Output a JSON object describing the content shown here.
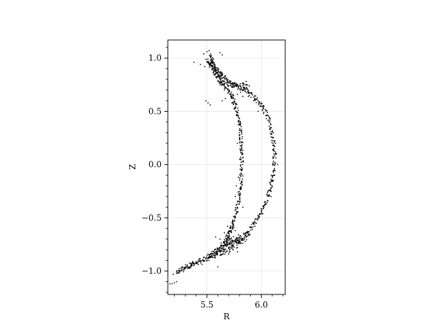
{
  "chart_data": {
    "type": "scatter",
    "title": "",
    "xlabel": "R",
    "ylabel": "Z",
    "xlim": [
      5.14,
      6.22
    ],
    "ylim": [
      -1.22,
      1.17
    ],
    "x_ticks": [
      5.5,
      6.0
    ],
    "x_tick_labels": [
      "5.5",
      "6.0"
    ],
    "y_ticks": [
      -1.0,
      -0.5,
      0.0,
      0.5,
      1.0
    ],
    "y_tick_labels": [
      "−1.0",
      "−0.5",
      "0.0",
      "0.5",
      "1.0"
    ],
    "grid": true,
    "marker_color": "#000000",
    "curves": {
      "outer_boundary": [
        [
          5.53,
          1.02
        ],
        [
          5.56,
          0.94
        ],
        [
          5.62,
          0.86
        ],
        [
          5.68,
          0.79
        ],
        [
          5.76,
          0.74
        ],
        [
          5.86,
          0.69
        ],
        [
          5.95,
          0.62
        ],
        [
          6.02,
          0.53
        ],
        [
          6.08,
          0.4
        ],
        [
          6.11,
          0.24
        ],
        [
          6.12,
          0.08
        ],
        [
          6.11,
          -0.08
        ],
        [
          6.08,
          -0.24
        ],
        [
          6.03,
          -0.38
        ],
        [
          5.97,
          -0.5
        ],
        [
          5.9,
          -0.6
        ],
        [
          5.82,
          -0.68
        ],
        [
          5.73,
          -0.74
        ],
        [
          5.63,
          -0.8
        ],
        [
          5.52,
          -0.86
        ],
        [
          5.4,
          -0.92
        ],
        [
          5.3,
          -0.97
        ],
        [
          5.22,
          -1.02
        ]
      ],
      "inner_boundary": [
        [
          5.52,
          0.97
        ],
        [
          5.58,
          0.86
        ],
        [
          5.65,
          0.76
        ],
        [
          5.72,
          0.66
        ],
        [
          5.76,
          0.56
        ],
        [
          5.79,
          0.44
        ],
        [
          5.81,
          0.3
        ],
        [
          5.82,
          0.14
        ],
        [
          5.82,
          -0.02
        ],
        [
          5.81,
          -0.18
        ],
        [
          5.79,
          -0.34
        ],
        [
          5.76,
          -0.48
        ],
        [
          5.73,
          -0.58
        ],
        [
          5.7,
          -0.66
        ],
        [
          5.66,
          -0.74
        ],
        [
          5.6,
          -0.8
        ],
        [
          5.52,
          -0.86
        ]
      ],
      "upper_xpoint_lines": [
        [
          5.52,
          0.96
        ],
        [
          5.63,
          0.82
        ],
        [
          5.72,
          0.75
        ],
        [
          5.8,
          0.75
        ],
        [
          5.88,
          0.72
        ]
      ],
      "upper_leg": [
        [
          5.5,
          0.98
        ],
        [
          5.55,
          0.9
        ],
        [
          5.6,
          0.8
        ],
        [
          5.66,
          0.74
        ]
      ],
      "lower_xpoint_lines": [
        [
          5.3,
          -0.96
        ],
        [
          5.44,
          -0.92
        ],
        [
          5.58,
          -0.86
        ],
        [
          5.7,
          -0.8
        ],
        [
          5.8,
          -0.74
        ],
        [
          5.9,
          -0.66
        ]
      ],
      "lower_leg": [
        [
          5.6,
          -0.86
        ],
        [
          5.68,
          -0.74
        ],
        [
          5.74,
          -0.7
        ],
        [
          5.82,
          -0.72
        ]
      ]
    },
    "scatter_x": [
      5.52,
      5.47,
      5.5,
      5.53,
      5.62,
      5.64,
      5.44,
      5.57,
      5.48,
      5.51,
      5.38,
      5.86,
      5.84,
      5.83,
      5.84,
      5.66,
      5.7,
      5.74,
      5.73,
      5.67,
      5.64,
      5.78,
      5.74,
      5.83,
      5.73,
      5.71,
      5.81,
      5.49,
      5.51,
      5.53,
      5.79,
      5.81,
      5.78,
      5.82,
      5.77,
      5.76,
      5.69,
      5.72,
      5.66,
      5.79,
      5.76,
      5.18,
      5.2,
      5.22,
      5.16,
      5.19,
      5.22,
      5.25,
      5.28,
      5.32,
      5.36,
      5.42,
      5.46,
      5.49,
      5.52,
      5.6,
      5.68,
      5.75,
      5.67,
      5.72,
      5.77,
      5.73,
      5.65,
      5.7,
      5.83,
      5.82,
      5.74,
      5.78,
      5.62,
      5.58,
      6.02,
      6.13,
      6.14,
      6.15,
      6.12,
      6.1,
      6.09,
      5.93,
      5.99,
      5.88,
      5.97,
      5.83,
      5.79,
      5.8,
      5.8,
      5.81
    ],
    "scatter_y": [
      1.07,
      1.04,
      1.06,
      1.02,
      1.05,
      1.03,
      0.94,
      0.9,
      0.92,
      0.96,
      0.96,
      0.78,
      0.76,
      0.74,
      0.72,
      0.7,
      0.68,
      0.66,
      0.64,
      0.62,
      0.6,
      0.66,
      0.62,
      0.64,
      0.58,
      0.66,
      0.68,
      0.6,
      0.58,
      0.56,
      0.4,
      0.38,
      0.2,
      0.16,
      -0.2,
      -0.3,
      -0.58,
      -0.62,
      -0.64,
      -0.66,
      -0.62,
      -1.12,
      -1.11,
      -1.1,
      -1.12,
      -1.03,
      -1.02,
      -1.0,
      -0.99,
      -0.97,
      -0.95,
      -0.94,
      -0.9,
      -0.88,
      -0.9,
      -0.96,
      -0.72,
      -0.74,
      -0.76,
      -0.7,
      -0.72,
      -0.78,
      -0.82,
      -0.84,
      -0.74,
      -0.7,
      -0.8,
      -0.82,
      -0.7,
      -0.68,
      0.48,
      0.2,
      0.1,
      0.0,
      -0.1,
      -0.2,
      -0.3,
      0.6,
      0.55,
      0.64,
      0.5,
      -0.4,
      -0.12,
      0.05,
      0.24,
      -0.22
    ]
  }
}
